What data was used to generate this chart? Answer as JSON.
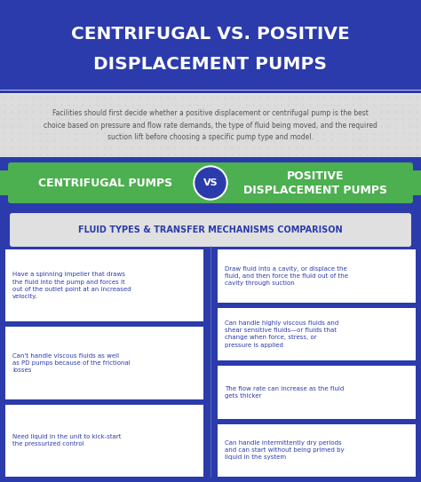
{
  "title_line1": "CENTRIFUGAL VS. POSITIVE",
  "title_line2": "DISPLACEMENT PUMPS",
  "title_bg": "#2b3bab",
  "title_color": "#ffffff",
  "body_bg": "#2b3bab",
  "subtitle_text": "Facilities should first decide whether a positive displacement or centrifugal pump is the best\nchoice based on pressure and flow rate demands, the type of fluid being moved, and the required\nsuction lift before choosing a specific pump type and model.",
  "subtitle_bg": "#dcdcdc",
  "subtitle_color": "#555555",
  "left_label": "CENTRIFUGAL PUMPS",
  "right_label": "POSITIVE\nDISPLACEMENT PUMPS",
  "vs_label": "VS",
  "bar_color": "#4caf50",
  "vs_bg": "#2b3bab",
  "vs_border": "#aaaaaa",
  "vs_color": "#ffffff",
  "section_label": "FLUID TYPES & TRANSFER MECHANISMS COMPARISON",
  "section_bg": "#e0e0e0",
  "section_color": "#2b3bab",
  "section_border": "#2b3bab",
  "left_bullets": [
    "Have a spinning impeller that draws\nthe fluid into the pump and forces it\nout of the outlet point at an increased\nvelocity.",
    "Can't handle viscous fluids as well\nas PD pumps because of the frictional\nlosses",
    "Need liquid in the unit to kick-start\nthe pressurized control"
  ],
  "right_bullets": [
    "Draw fluid into a cavity, or displace the\nfluid, and then force the fluid out of the\ncavity through suction",
    "Can handle highly viscous fluids and\nshear sensitive fluids—or fluids that\nchange when force, stress, or\npressure is applied",
    "The flow rate can increase as the fluid\ngets thicker",
    "Can handle intermittently dry periods\nand can start without being primed by\nliquid in the system"
  ],
  "card_bg": "#ffffff",
  "card_text_color": "#2b3bab",
  "tab_color": "#b0bec5",
  "divider_color": "#7986cb"
}
